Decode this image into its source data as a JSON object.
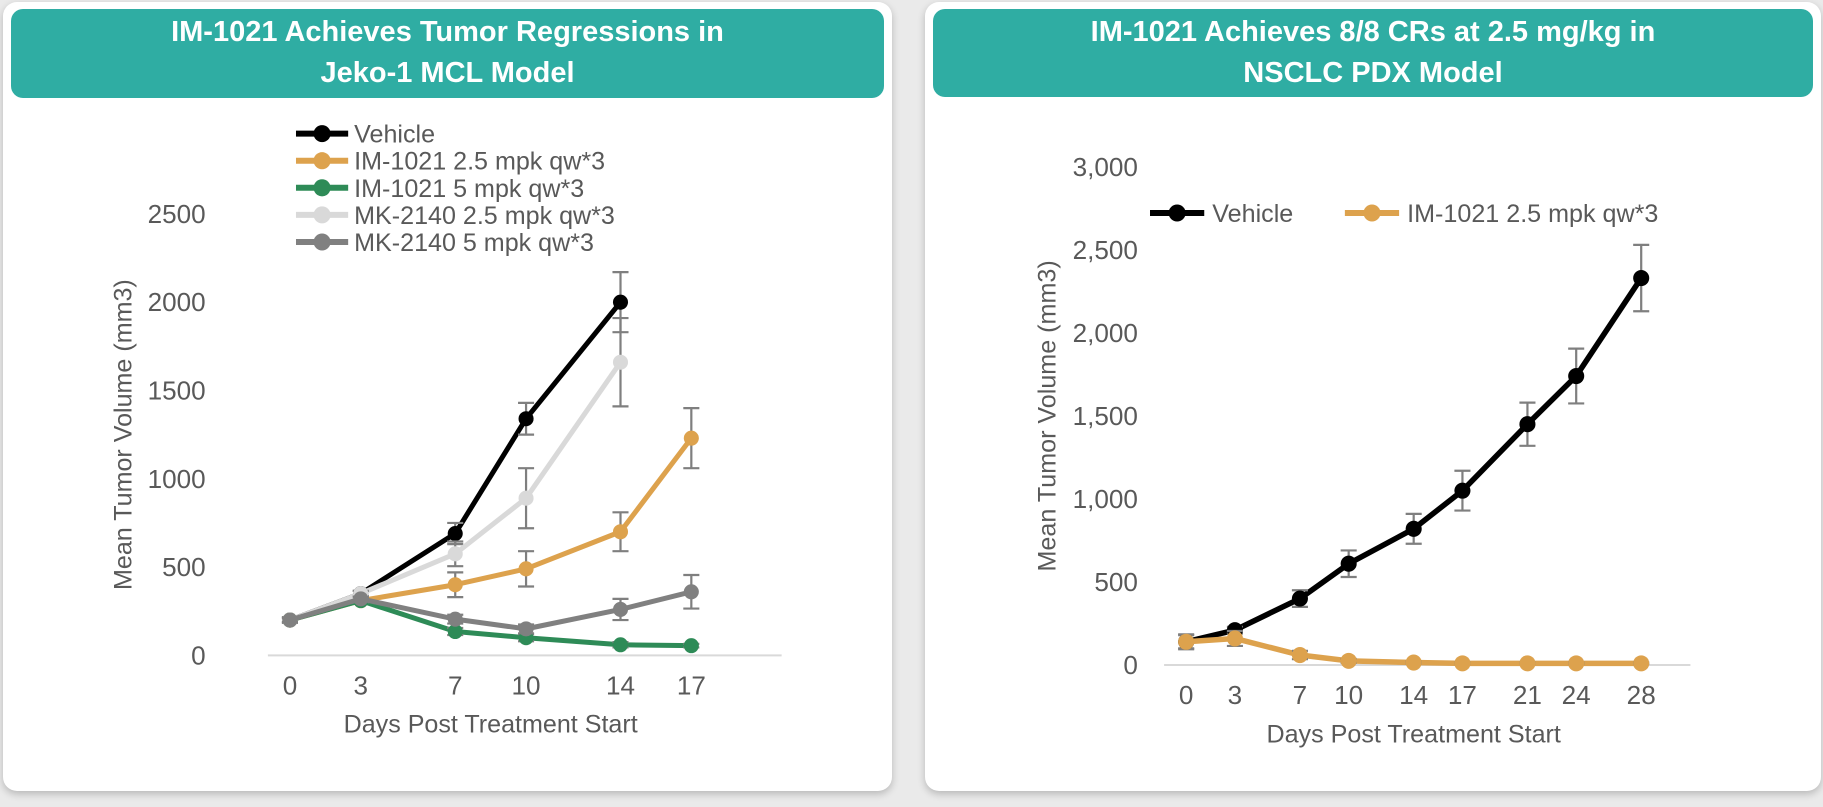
{
  "cards": [
    {
      "title_line1": "IM-1021 Achieves Tumor Regressions in",
      "title_line2": "Jeko-1 MCL Model"
    },
    {
      "title_line1": "IM-1021 Achieves 8/8 CRs at 2.5 mg/kg in",
      "title_line2": "NSCLC PDX Model"
    }
  ],
  "colors": {
    "banner_teal": "#2fada3",
    "card_bg": "#ffffff",
    "page_bg": "#eaeaea",
    "axis_text": "#595959",
    "axis_line": "#d9d9d9",
    "error_bar": "#7f7f7f"
  },
  "chart_data": [
    {
      "type": "line",
      "title": "IM-1021 Achieves Tumor Regressions in Jeko-1 MCL Model",
      "xlabel": "Days Post Treatment Start",
      "ylabel": "Mean Tumor Volume (mm3)",
      "x": [
        0,
        3,
        7,
        10,
        14,
        17
      ],
      "xtick_labels": [
        "0",
        "3",
        "7",
        "10",
        "14",
        "17"
      ],
      "ylim": [
        0,
        2500
      ],
      "yticks": [
        0,
        500,
        1000,
        1500,
        2000,
        2500
      ],
      "ytick_labels": [
        "0",
        "500",
        "1000",
        "1500",
        "2000",
        "2500"
      ],
      "grid": false,
      "legend_position": "upper-left-vertical",
      "series": [
        {
          "name": "Vehicle",
          "color": "#000000",
          "values": [
            200,
            350,
            690,
            1340,
            2000,
            null
          ],
          "err": [
            15,
            15,
            60,
            90,
            170,
            null
          ]
        },
        {
          "name": "IM-1021 2.5 mpk qw*3",
          "color": "#dda24d",
          "values": [
            200,
            310,
            400,
            490,
            700,
            1230
          ],
          "err": [
            15,
            15,
            70,
            100,
            110,
            170
          ]
        },
        {
          "name": "IM-1021 5 mpk qw*3",
          "color": "#2e8b57",
          "values": [
            200,
            310,
            135,
            100,
            60,
            55
          ],
          "err": [
            10,
            10,
            20,
            20,
            15,
            10
          ]
        },
        {
          "name": "MK-2140 2.5 mpk qw*3",
          "color": "#d9d9d9",
          "values": [
            200,
            350,
            575,
            890,
            1660,
            null
          ],
          "err": [
            15,
            15,
            70,
            170,
            250,
            null
          ]
        },
        {
          "name": "MK-2140 5 mpk qw*3",
          "color": "#808080",
          "values": [
            200,
            320,
            205,
            150,
            260,
            360
          ],
          "err": [
            10,
            10,
            25,
            25,
            60,
            95
          ]
        }
      ]
    },
    {
      "type": "line",
      "title": "IM-1021 Achieves 8/8 CRs at 2.5 mg/kg in NSCLC PDX Model",
      "xlabel": "Days Post Treatment Start",
      "ylabel": "Mean Tumor Volume (mm3)",
      "x": [
        0,
        3,
        7,
        10,
        14,
        17,
        21,
        24,
        28
      ],
      "xtick_labels": [
        "0",
        "3",
        "7",
        "10",
        "14",
        "17",
        "21",
        "24",
        "28"
      ],
      "ylim": [
        0,
        3000
      ],
      "yticks": [
        0,
        500,
        1000,
        1500,
        2000,
        2500,
        3000
      ],
      "ytick_labels": [
        "0",
        "500",
        "1,000",
        "1,500",
        "2,000",
        "2,500",
        "3,000"
      ],
      "grid": false,
      "legend_position": "top-horizontal",
      "series": [
        {
          "name": "Vehicle",
          "color": "#000000",
          "values": [
            140,
            210,
            400,
            610,
            820,
            1050,
            1450,
            1740,
            2330
          ],
          "err": [
            40,
            20,
            50,
            80,
            90,
            120,
            130,
            165,
            200
          ]
        },
        {
          "name": "IM-1021 2.5 mpk qw*3",
          "color": "#dda24d",
          "values": [
            140,
            160,
            60,
            25,
            15,
            10,
            10,
            10,
            10
          ],
          "err": [
            45,
            45,
            25,
            12,
            6,
            5,
            5,
            5,
            5
          ]
        }
      ]
    }
  ]
}
